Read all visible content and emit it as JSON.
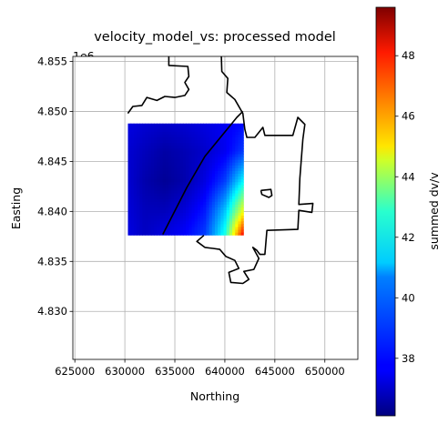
{
  "chart_data": {
    "type": "heatmap",
    "title": "velocity_model_vs: processed model",
    "xlabel": "Northing",
    "ylabel": "Easting",
    "y_offset_label": "1e6",
    "colorbar_label": "summed dv/v",
    "colormap": "jet",
    "grid": true,
    "xlim": [
      624800,
      653300
    ],
    "ylim": [
      4825200,
      4855500
    ],
    "x_ticks": [
      625000,
      630000,
      635000,
      640000,
      645000,
      650000
    ],
    "x_tick_labels": [
      "625000",
      "630000",
      "635000",
      "640000",
      "645000",
      "650000"
    ],
    "y_ticks": [
      4830000,
      4835000,
      4840000,
      4845000,
      4850000,
      4855000
    ],
    "y_tick_labels": [
      "4.830",
      "4.835",
      "4.840",
      "4.845",
      "4.850",
      "4.855"
    ],
    "colorbar_range": [
      36.1,
      49.6
    ],
    "colorbar_ticks": [
      38,
      40,
      42,
      44,
      46,
      48
    ],
    "colorbar_tick_labels": [
      "38",
      "40",
      "42",
      "44",
      "46",
      "48"
    ],
    "model_extent": {
      "x": [
        630300,
        641900
      ],
      "y": [
        4837600,
        4848800
      ]
    },
    "grid_values": {
      "x": [
        630300,
        632000,
        634000,
        636000,
        638000,
        640000,
        641900
      ],
      "y": [
        4837600,
        4840000,
        4843000,
        4846000,
        4848800
      ],
      "z": [
        [
          37.4,
          37.0,
          37.4,
          37.8,
          38.6,
          41.5,
          48.2
        ],
        [
          37.3,
          36.9,
          36.9,
          37.3,
          38.1,
          40.4,
          44.5
        ],
        [
          37.2,
          36.7,
          36.4,
          36.7,
          37.4,
          38.6,
          41.2
        ],
        [
          37.2,
          36.9,
          36.6,
          36.8,
          37.1,
          37.6,
          38.6
        ],
        [
          37.4,
          37.2,
          37.1,
          37.2,
          37.4,
          37.6,
          37.9
        ]
      ]
    },
    "boundary_line": [
      [
        639650,
        4855500
      ],
      [
        639700,
        4854000
      ],
      [
        640300,
        4853300
      ],
      [
        640200,
        4851900
      ],
      [
        641000,
        4851200
      ],
      [
        641800,
        4849800
      ],
      [
        642000,
        4848200
      ],
      [
        642200,
        4847400
      ],
      [
        643000,
        4847400
      ],
      [
        643800,
        4848400
      ],
      [
        644000,
        4847600
      ],
      [
        646800,
        4847600
      ],
      [
        647300,
        4849400
      ],
      [
        648000,
        4848700
      ],
      [
        647800,
        4847200
      ],
      [
        647500,
        4843300
      ],
      [
        647400,
        4840700
      ],
      [
        648800,
        4840800
      ],
      [
        648700,
        4839900
      ],
      [
        647400,
        4840100
      ],
      [
        647300,
        4838200
      ],
      [
        644200,
        4838100
      ],
      [
        644000,
        4835700
      ],
      [
        643500,
        4835700
      ],
      [
        643200,
        4836100
      ],
      [
        642800,
        4836400
      ],
      [
        643400,
        4835300
      ],
      [
        642900,
        4834200
      ],
      [
        641900,
        4834000
      ],
      [
        642400,
        4833200
      ],
      [
        641800,
        4832800
      ],
      [
        640600,
        4832900
      ],
      [
        640400,
        4833900
      ],
      [
        641400,
        4834300
      ],
      [
        641000,
        4835100
      ],
      [
        640100,
        4835500
      ],
      [
        639500,
        4836200
      ],
      [
        638800,
        4836300
      ],
      [
        638000,
        4836400
      ],
      [
        637200,
        4837000
      ],
      [
        637900,
        4837600
      ]
    ],
    "boundary_line_2": [
      [
        641800,
        4850000
      ],
      [
        641200,
        4849400
      ],
      [
        638000,
        4845500
      ],
      [
        636200,
        4842400
      ],
      [
        633800,
        4837700
      ]
    ],
    "boundary_line_3": [
      [
        634400,
        4855500
      ],
      [
        634400,
        4854600
      ],
      [
        636300,
        4854500
      ],
      [
        636400,
        4853500
      ],
      [
        636000,
        4852900
      ],
      [
        636400,
        4852200
      ],
      [
        636000,
        4851600
      ],
      [
        635000,
        4851400
      ],
      [
        634000,
        4851500
      ],
      [
        633200,
        4851100
      ],
      [
        632200,
        4851400
      ],
      [
        631700,
        4850600
      ],
      [
        630800,
        4850500
      ],
      [
        630300,
        4849800
      ]
    ],
    "island": [
      [
        643600,
        4842100
      ],
      [
        644600,
        4842200
      ],
      [
        644700,
        4841600
      ],
      [
        644400,
        4841400
      ],
      [
        643700,
        4841700
      ],
      [
        643600,
        4842100
      ]
    ]
  }
}
